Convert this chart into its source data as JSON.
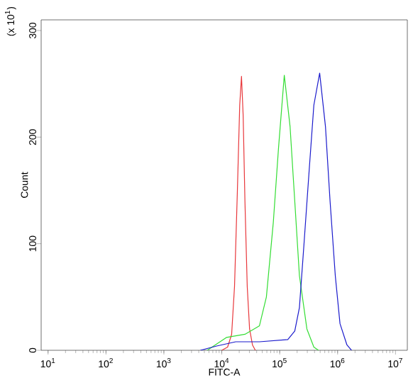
{
  "chart_data": {
    "type": "line",
    "xlabel": "FITC-A",
    "ylabel": "Count",
    "annotations": [
      "(x 10$^{1}$)"
    ],
    "log": "x",
    "grid": false,
    "xlim": [
      7.6,
      16000000
    ],
    "ylim": [
      0,
      310
    ],
    "xticks": [
      {
        "value": 10,
        "label": "10$^{1}$"
      },
      {
        "value": 100,
        "label": "10$^{2}$"
      },
      {
        "value": 1000,
        "label": "10$^{3}$"
      },
      {
        "value": 10000,
        "label": "10$^{4}$"
      },
      {
        "value": 100000,
        "label": "10$^{5}$"
      },
      {
        "value": 1000000,
        "label": "10$^{6}$"
      },
      {
        "value": 10000000,
        "label": "10$^{7}$"
      }
    ],
    "yticks": [
      0,
      100,
      200,
      300
    ],
    "series": [
      {
        "color": "#e8363a",
        "x": [
          10000,
          12600,
          14800,
          16600,
          18600,
          20400,
          21900,
          23400,
          25100,
          27500,
          30200,
          33900,
          38000
        ],
        "values": [
          0,
          3,
          15,
          60,
          150,
          230,
          257,
          220,
          140,
          60,
          20,
          5,
          0
        ]
      },
      {
        "color": "#33dd33",
        "x": [
          5620,
          12000,
          25100,
          44700,
          58900,
          77600,
          95500,
          120000,
          151000,
          182000,
          219000,
          295000,
          389000,
          468000
        ],
        "values": [
          0,
          12,
          15,
          23,
          50,
          120,
          190,
          258,
          210,
          140,
          70,
          20,
          3,
          0
        ]
      },
      {
        "color": "#1a1acc",
        "x": [
          4270,
          8130,
          17400,
          44700,
          138000,
          182000,
          219000,
          263000,
          324000,
          389000,
          490000,
          617000,
          741000,
          912000,
          1100000,
          1450000,
          1740000
        ],
        "values": [
          0,
          4,
          8,
          8,
          10,
          18,
          40,
          100,
          170,
          230,
          260,
          210,
          140,
          70,
          25,
          5,
          0
        ]
      }
    ]
  }
}
